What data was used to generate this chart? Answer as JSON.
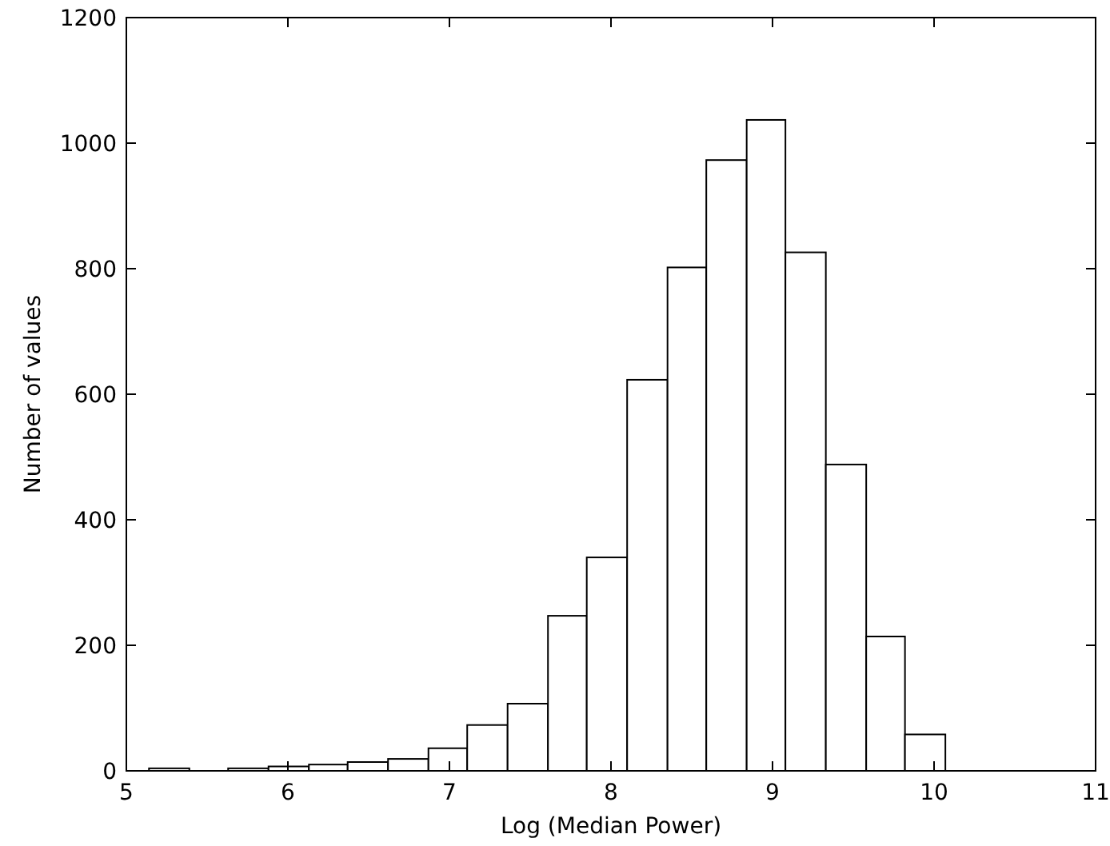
{
  "chart_data": {
    "type": "histogram",
    "xlabel": "Log (Median Power)",
    "ylabel": "Number of values",
    "bins": [
      5.14,
      5.39,
      5.63,
      5.88,
      6.13,
      6.37,
      6.62,
      6.87,
      7.11,
      7.36,
      7.61,
      7.85,
      8.1,
      8.35,
      8.59,
      8.84,
      9.08,
      9.33,
      9.58,
      9.82,
      10.07
    ],
    "values": [
      4,
      0,
      4,
      7,
      10,
      14,
      19,
      36,
      73,
      107,
      247,
      340,
      623,
      802,
      973,
      1037,
      826,
      488,
      214,
      58
    ],
    "color": "#ffffff",
    "xlim": [
      5,
      11
    ],
    "xticks": [
      5,
      6,
      7,
      8,
      9,
      10,
      11
    ],
    "ylim": [
      0,
      1200
    ],
    "yticks": [
      0,
      200,
      400,
      600,
      800,
      1000,
      1200
    ],
    "grid": false
  }
}
